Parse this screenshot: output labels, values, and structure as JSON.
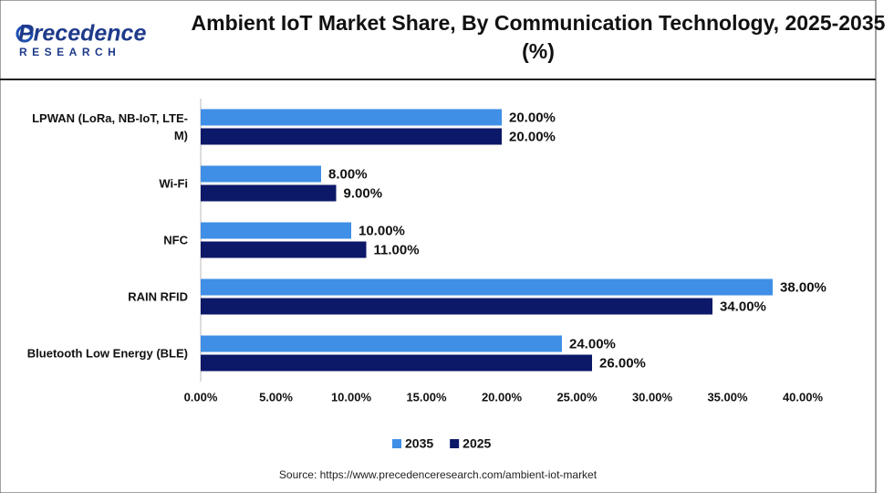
{
  "logo": {
    "name": "Precedence",
    "tagline": "RESEARCH"
  },
  "chart_data": {
    "type": "hbar",
    "title": "Ambient IoT Market Share, By Communication Technology, 2025-2035 (%)",
    "categories": [
      "LPWAN (LoRa, NB-IoT, LTE-M)",
      "Wi-Fi",
      "NFC",
      "RAIN RFID",
      "Bluetooth Low Energy (BLE)"
    ],
    "series": [
      {
        "name": "2035",
        "color": "#3f8fe6",
        "values": [
          20,
          8,
          10,
          38,
          24
        ],
        "value_labels": [
          "20.00%",
          "8.00%",
          "10.00%",
          "38.00%",
          "24.00%"
        ]
      },
      {
        "name": "2025",
        "color": "#0c1868",
        "values": [
          20,
          9,
          11,
          34,
          26
        ],
        "value_labels": [
          "20.00%",
          "9.00%",
          "11.00%",
          "34.00%",
          "26.00%"
        ]
      }
    ],
    "xlim": [
      0,
      40
    ],
    "xticks": [
      {
        "value": 0,
        "label": "0.00%"
      },
      {
        "value": 5,
        "label": "5.00%"
      },
      {
        "value": 10,
        "label": "10.00%"
      },
      {
        "value": 15,
        "label": "15.00%"
      },
      {
        "value": 20,
        "label": "20.00%"
      },
      {
        "value": 25,
        "label": "25.00%"
      },
      {
        "value": 30,
        "label": "30.00%"
      },
      {
        "value": 35,
        "label": "35.00%"
      },
      {
        "value": 40,
        "label": "40.00%"
      }
    ],
    "legend": "bottom",
    "source": "Source: https://www.precedenceresearch.com/ambient-iot-market"
  }
}
